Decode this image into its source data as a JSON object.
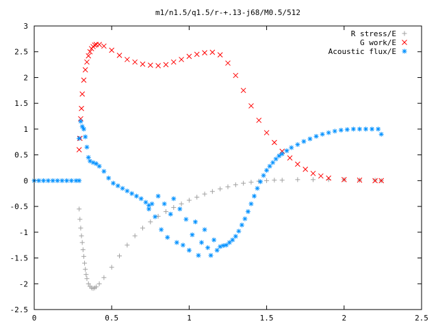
{
  "chart_data": {
    "type": "scatter",
    "title": "m1/n1.5/q1.5/r-+.13-j68/M0.5/512",
    "xlabel": "",
    "ylabel": "",
    "xlim": [
      0,
      2.5
    ],
    "ylim": [
      -2.5,
      3
    ],
    "x_ticks": [
      0,
      0.5,
      1,
      1.5,
      2,
      2.5
    ],
    "x_tick_labels": [
      "0",
      "0.5",
      "1",
      "1.5",
      "2",
      "2.5"
    ],
    "y_ticks": [
      -2.5,
      -2,
      -1.5,
      -1,
      -0.5,
      0,
      0.5,
      1,
      1.5,
      2,
      2.5,
      3
    ],
    "y_tick_labels": [
      "-2.5",
      "-2",
      "-1.5",
      "-1",
      "-0.5",
      "0",
      "0.5",
      "1",
      "1.5",
      "2",
      "2.5",
      "3"
    ],
    "grid": false,
    "legend_position": "top-right",
    "series": [
      {
        "name": "R stress/E",
        "color": "#a0a0a0",
        "marker": "plus",
        "x": [
          0.29,
          0.295,
          0.3,
          0.305,
          0.31,
          0.315,
          0.32,
          0.325,
          0.33,
          0.335,
          0.34,
          0.35,
          0.36,
          0.37,
          0.38,
          0.39,
          0.4,
          0.42,
          0.45,
          0.5,
          0.55,
          0.6,
          0.65,
          0.7,
          0.75,
          0.8,
          0.85,
          0.9,
          0.95,
          1.0,
          1.05,
          1.1,
          1.15,
          1.2,
          1.25,
          1.3,
          1.35,
          1.4,
          1.45,
          1.5,
          1.55,
          1.6,
          1.7,
          1.8,
          1.9,
          2.0,
          2.1,
          2.2,
          2.24
        ],
        "y": [
          -0.55,
          -0.75,
          -0.92,
          -1.07,
          -1.2,
          -1.34,
          -1.47,
          -1.6,
          -1.72,
          -1.82,
          -1.9,
          -2.0,
          -2.05,
          -2.08,
          -2.09,
          -2.08,
          -2.06,
          -2.0,
          -1.88,
          -1.68,
          -1.46,
          -1.25,
          -1.07,
          -0.92,
          -0.8,
          -0.69,
          -0.6,
          -0.52,
          -0.45,
          -0.38,
          -0.32,
          -0.26,
          -0.21,
          -0.16,
          -0.12,
          -0.08,
          -0.05,
          -0.03,
          -0.01,
          0.0,
          0.01,
          0.01,
          0.02,
          0.02,
          0.02,
          0.02,
          0.01,
          0.01,
          0.0
        ]
      },
      {
        "name": "G work/E",
        "color": "#ff0000",
        "marker": "cross",
        "x": [
          0.29,
          0.295,
          0.3,
          0.305,
          0.31,
          0.32,
          0.33,
          0.34,
          0.35,
          0.36,
          0.37,
          0.38,
          0.39,
          0.4,
          0.42,
          0.45,
          0.5,
          0.55,
          0.6,
          0.65,
          0.7,
          0.75,
          0.8,
          0.85,
          0.9,
          0.95,
          1.0,
          1.05,
          1.1,
          1.15,
          1.2,
          1.25,
          1.3,
          1.35,
          1.4,
          1.45,
          1.5,
          1.55,
          1.6,
          1.65,
          1.7,
          1.75,
          1.8,
          1.85,
          1.9,
          2.0,
          2.1,
          2.2,
          2.24
        ],
        "y": [
          0.6,
          0.82,
          1.2,
          1.4,
          1.68,
          1.95,
          2.15,
          2.3,
          2.42,
          2.5,
          2.56,
          2.6,
          2.63,
          2.64,
          2.64,
          2.61,
          2.53,
          2.43,
          2.35,
          2.3,
          2.26,
          2.24,
          2.23,
          2.25,
          2.3,
          2.35,
          2.41,
          2.45,
          2.48,
          2.49,
          2.44,
          2.28,
          2.04,
          1.75,
          1.45,
          1.17,
          0.93,
          0.74,
          0.57,
          0.44,
          0.32,
          0.22,
          0.14,
          0.09,
          0.05,
          0.02,
          0.01,
          0.0,
          0.0
        ]
      },
      {
        "name": "Acoustic flux/E",
        "color": "#0090ff",
        "marker": "star",
        "x": [
          0.0,
          0.03,
          0.06,
          0.09,
          0.12,
          0.15,
          0.18,
          0.21,
          0.24,
          0.27,
          0.29,
          0.29,
          0.3,
          0.31,
          0.32,
          0.33,
          0.34,
          0.35,
          0.36,
          0.38,
          0.4,
          0.42,
          0.45,
          0.48,
          0.51,
          0.54,
          0.57,
          0.6,
          0.63,
          0.66,
          0.69,
          0.72,
          0.74,
          0.74,
          0.76,
          0.78,
          0.8,
          0.82,
          0.84,
          0.86,
          0.88,
          0.9,
          0.92,
          0.94,
          0.96,
          0.98,
          1.0,
          1.02,
          1.04,
          1.06,
          1.08,
          1.1,
          1.12,
          1.14,
          1.16,
          1.18,
          1.2,
          1.22,
          1.24,
          1.26,
          1.28,
          1.3,
          1.32,
          1.34,
          1.36,
          1.38,
          1.4,
          1.42,
          1.44,
          1.46,
          1.48,
          1.5,
          1.52,
          1.54,
          1.56,
          1.58,
          1.6,
          1.63,
          1.66,
          1.7,
          1.74,
          1.78,
          1.82,
          1.86,
          1.9,
          1.94,
          1.98,
          2.02,
          2.06,
          2.1,
          2.14,
          2.18,
          2.22,
          2.24
        ],
        "y": [
          0.0,
          0.0,
          0.0,
          0.0,
          0.0,
          0.0,
          0.0,
          0.0,
          0.0,
          0.0,
          0.0,
          0.82,
          1.15,
          1.05,
          1.0,
          0.85,
          0.65,
          0.45,
          0.38,
          0.35,
          0.33,
          0.28,
          0.18,
          0.05,
          -0.05,
          -0.1,
          -0.15,
          -0.2,
          -0.25,
          -0.3,
          -0.35,
          -0.42,
          -0.48,
          -0.55,
          -0.45,
          -0.7,
          -0.3,
          -0.95,
          -0.45,
          -1.1,
          -0.65,
          -0.35,
          -1.2,
          -0.55,
          -1.25,
          -0.75,
          -1.35,
          -1.05,
          -0.8,
          -1.45,
          -1.2,
          -0.95,
          -1.3,
          -1.45,
          -1.15,
          -1.35,
          -1.28,
          -1.26,
          -1.25,
          -1.2,
          -1.15,
          -1.08,
          -0.98,
          -0.86,
          -0.74,
          -0.6,
          -0.45,
          -0.3,
          -0.15,
          -0.02,
          0.1,
          0.2,
          0.28,
          0.35,
          0.42,
          0.48,
          0.52,
          0.58,
          0.64,
          0.7,
          0.76,
          0.81,
          0.86,
          0.9,
          0.93,
          0.96,
          0.98,
          0.99,
          1.0,
          1.0,
          1.0,
          1.0,
          1.0,
          0.9
        ]
      }
    ]
  }
}
